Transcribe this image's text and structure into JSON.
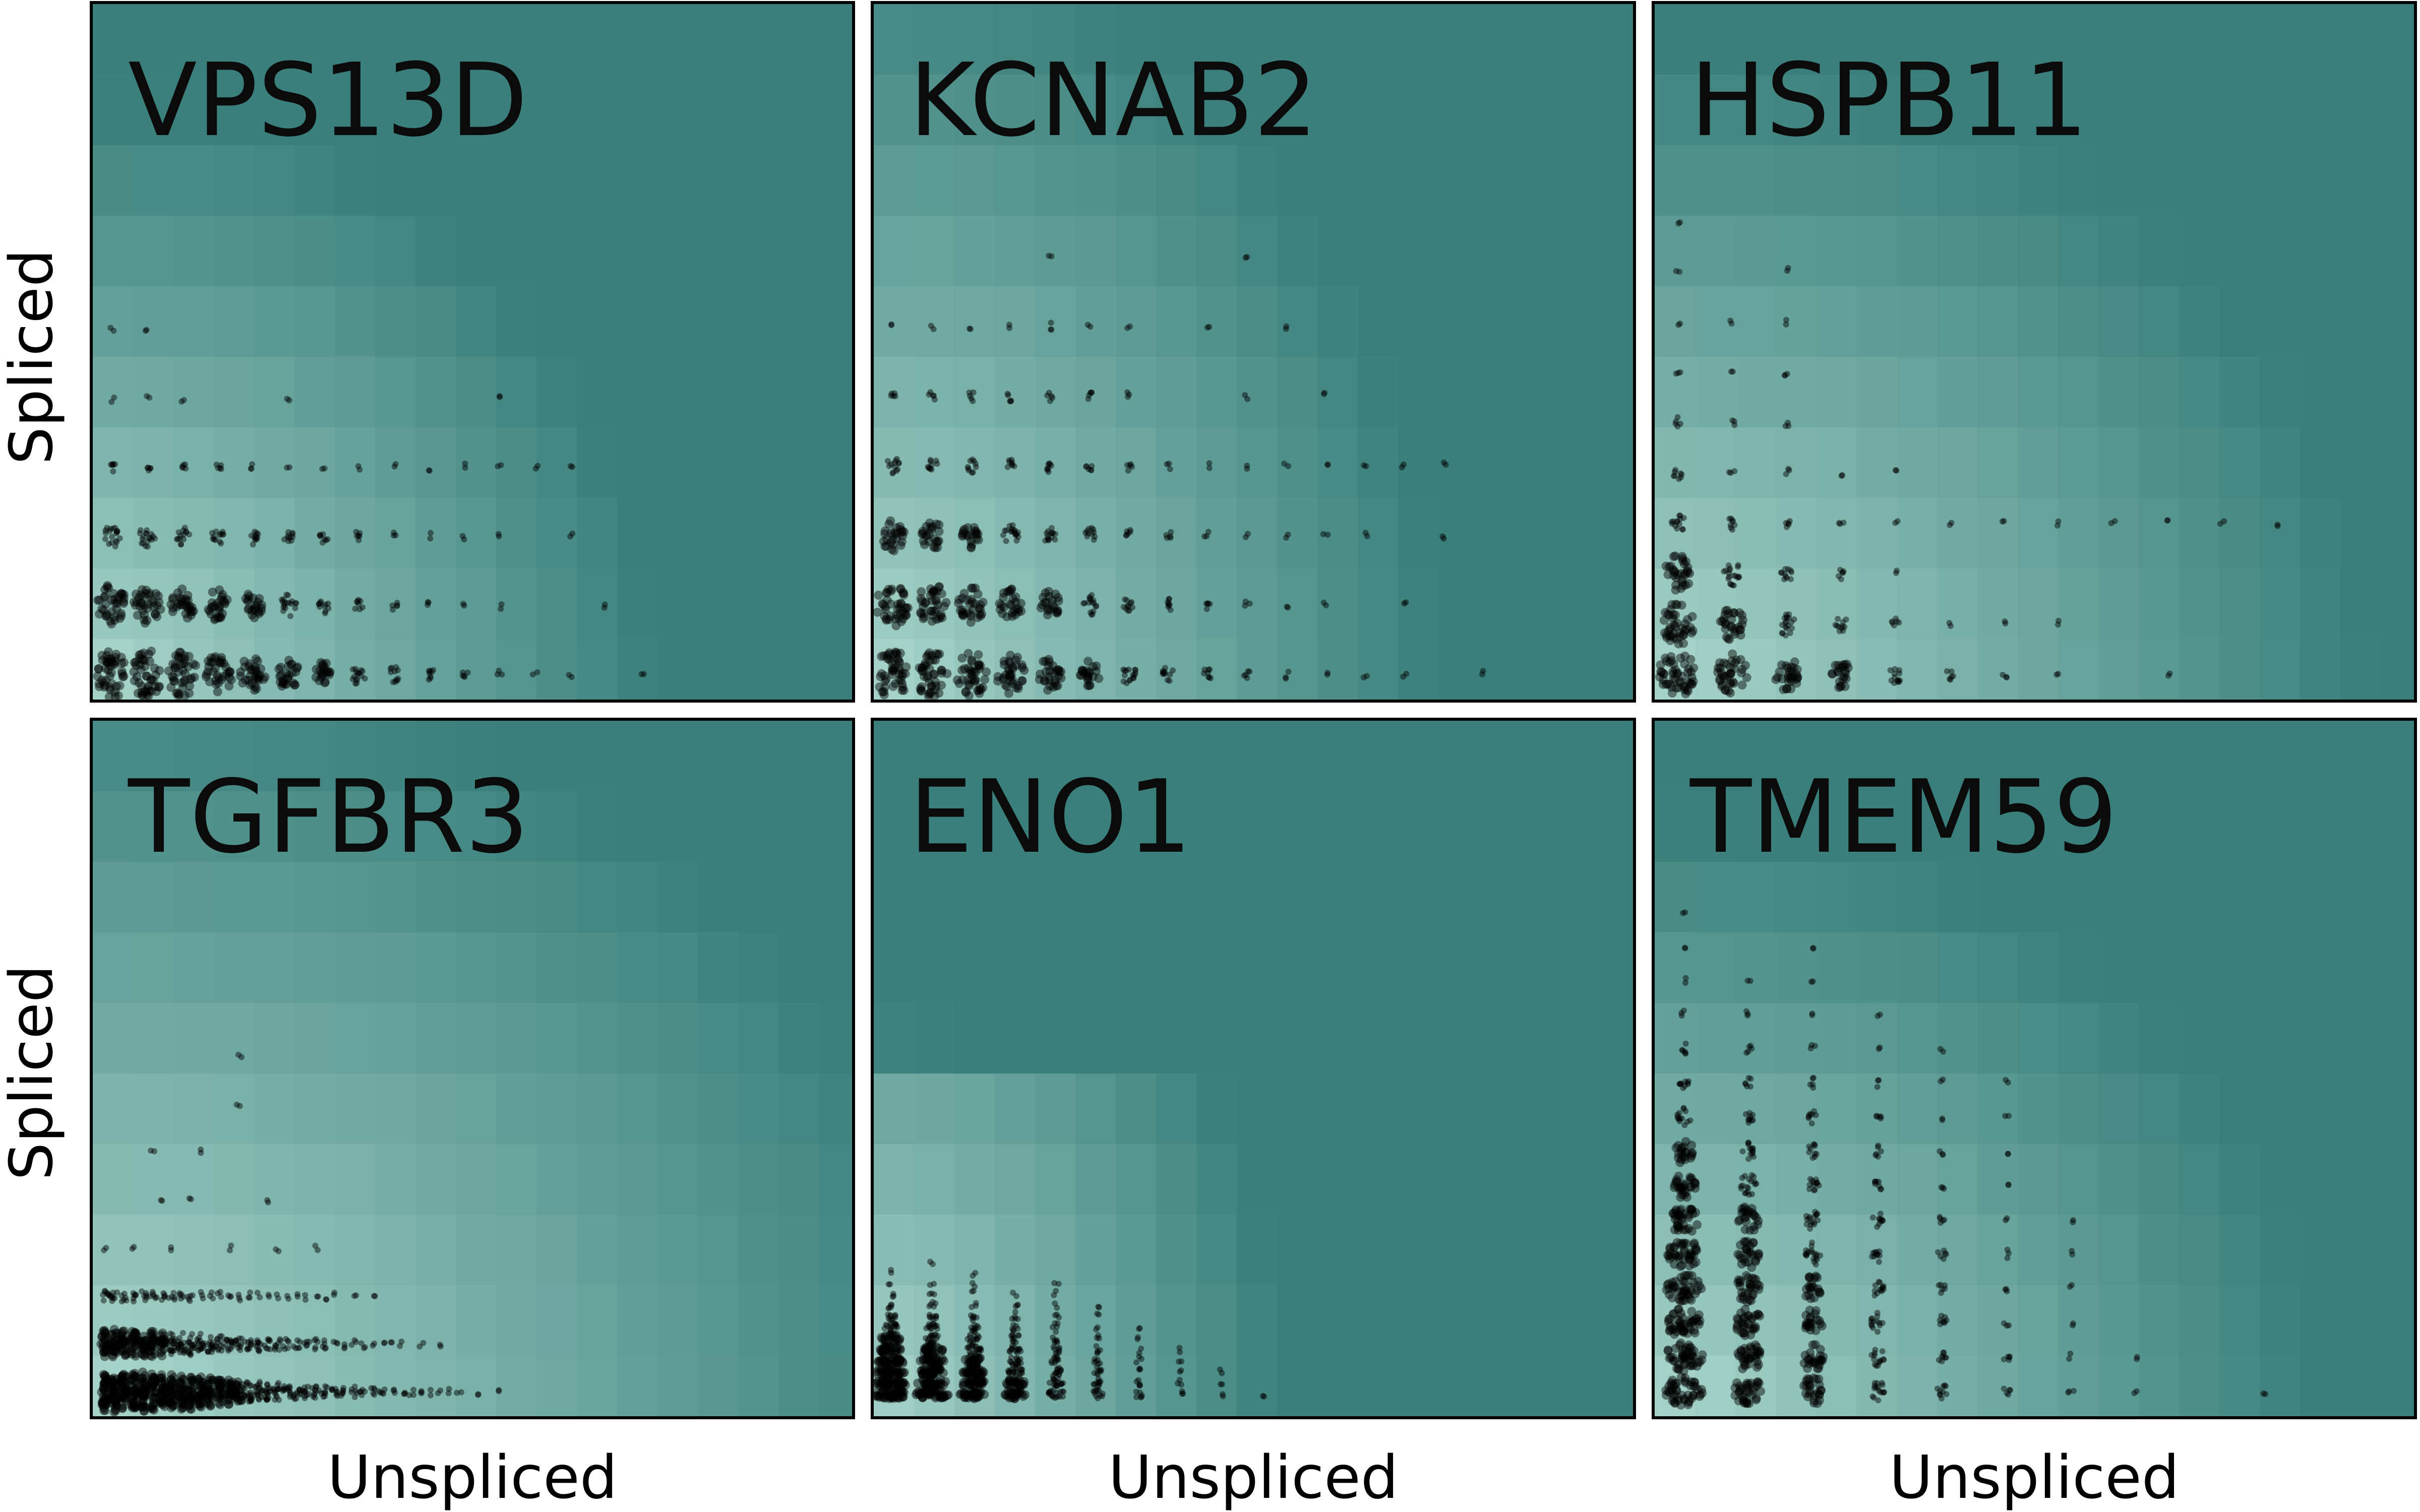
{
  "chart_data": [
    {
      "type": "scatter",
      "title": "VPS13D",
      "xlabel": "",
      "ylabel": "Spliced",
      "grid": false,
      "legend": "none",
      "background": "heatmap",
      "rows": [
        {
          "level": 0,
          "counts": [
            30,
            28,
            26,
            22,
            20,
            16,
            13,
            10,
            7,
            5,
            3,
            2,
            1,
            1,
            0,
            1
          ]
        },
        {
          "level": 1,
          "counts": [
            24,
            22,
            19,
            17,
            14,
            11,
            7,
            5,
            3,
            2,
            1,
            1,
            0,
            0,
            1
          ]
        },
        {
          "level": 2,
          "counts": [
            12,
            11,
            9,
            8,
            7,
            6,
            5,
            4,
            2,
            1,
            1,
            1,
            0,
            1
          ]
        },
        {
          "level": 3,
          "counts": [
            4,
            3,
            3,
            3,
            2,
            1,
            1,
            1,
            1,
            1,
            1,
            1,
            1,
            1
          ]
        },
        {
          "level": 4,
          "counts": [
            1,
            1,
            1,
            0,
            0,
            1,
            0,
            0,
            0,
            0,
            0,
            1
          ]
        },
        {
          "level": 5,
          "counts": [
            1,
            1
          ]
        }
      ]
    },
    {
      "type": "scatter",
      "title": "KCNAB2",
      "xlabel": "",
      "ylabel": "",
      "grid": false,
      "legend": "none",
      "background": "heatmap",
      "rows": [
        {
          "level": 0,
          "counts": [
            30,
            28,
            25,
            22,
            18,
            14,
            10,
            7,
            5,
            3,
            2,
            1,
            1,
            1,
            0,
            1
          ]
        },
        {
          "level": 1,
          "counts": [
            26,
            24,
            20,
            17,
            14,
            10,
            7,
            5,
            3,
            2,
            1,
            1,
            0,
            1
          ]
        },
        {
          "level": 2,
          "counts": [
            17,
            15,
            13,
            11,
            9,
            7,
            4,
            3,
            2,
            1,
            1,
            1,
            1,
            0,
            1
          ]
        },
        {
          "level": 3,
          "counts": [
            8,
            6,
            6,
            5,
            5,
            4,
            3,
            2,
            1,
            1,
            1,
            1,
            1,
            1,
            1
          ]
        },
        {
          "level": 4,
          "counts": [
            3,
            3,
            3,
            3,
            3,
            3,
            2,
            0,
            0,
            1,
            0,
            1
          ]
        },
        {
          "level": 5,
          "counts": [
            1,
            1,
            1,
            1,
            2,
            1,
            1,
            0,
            1,
            0,
            1
          ]
        },
        {
          "level": 6,
          "counts": [
            0,
            0,
            0,
            0,
            1,
            0,
            0,
            0,
            0,
            1
          ]
        }
      ]
    },
    {
      "type": "scatter",
      "title": "HSPB11",
      "xlabel": "",
      "ylabel": "",
      "grid": false,
      "legend": "none",
      "background": "heatmap",
      "rows": [
        {
          "level": 0,
          "counts": [
            32,
            24,
            18,
            14,
            8,
            4,
            2,
            1,
            0,
            1
          ]
        },
        {
          "level": 1,
          "counts": [
            26,
            18,
            12,
            7,
            4,
            1,
            1,
            1
          ]
        },
        {
          "level": 2,
          "counts": [
            20,
            12,
            7,
            4,
            1
          ]
        },
        {
          "level": 3,
          "counts": [
            9,
            5,
            3,
            2,
            1,
            1,
            1,
            1,
            1,
            1,
            1,
            1
          ]
        },
        {
          "level": 4,
          "counts": [
            5,
            2,
            2,
            1,
            1
          ]
        },
        {
          "level": 5,
          "counts": [
            3,
            2,
            2
          ]
        },
        {
          "level": 6,
          "counts": [
            2,
            1,
            2
          ]
        },
        {
          "level": 7,
          "counts": [
            1,
            1,
            1
          ]
        },
        {
          "level": 8,
          "counts": [
            1,
            0,
            1
          ]
        },
        {
          "level": 9,
          "counts": [
            1
          ]
        }
      ]
    },
    {
      "type": "scatter",
      "title": "TGFBR3",
      "xlabel": "Unspliced",
      "ylabel": "Spliced",
      "grid": false,
      "legend": "none",
      "background": "heatmap",
      "rows": [
        {
          "level": 0,
          "counts": [
            26,
            26,
            25,
            24,
            24,
            23,
            22,
            21,
            20,
            19,
            18,
            17,
            16,
            15,
            13,
            12,
            11,
            10,
            9,
            8,
            7,
            6,
            6,
            5,
            5,
            4,
            4,
            3,
            3,
            3,
            2,
            2,
            2,
            2,
            1,
            1,
            1,
            1,
            0,
            1,
            0,
            1
          ]
        },
        {
          "level": 1,
          "counts": [
            16,
            16,
            15,
            15,
            14,
            14,
            13,
            12,
            12,
            11,
            10,
            9,
            8,
            8,
            7,
            6,
            6,
            5,
            5,
            4,
            4,
            3,
            3,
            3,
            2,
            2,
            2,
            2,
            1,
            1,
            1,
            1,
            0,
            1,
            0,
            1
          ]
        },
        {
          "level": 2,
          "counts": [
            5,
            5,
            4,
            4,
            4,
            4,
            3,
            3,
            3,
            3,
            2,
            2,
            2,
            2,
            2,
            2,
            1,
            1,
            1,
            1,
            1,
            1,
            1,
            1,
            1,
            0,
            1,
            0,
            1
          ]
        },
        {
          "level": 3,
          "counts": [
            1,
            0,
            0,
            1,
            0,
            0,
            0,
            1,
            0,
            0,
            0,
            0,
            0,
            1,
            0,
            0,
            0,
            0,
            1,
            0,
            0,
            0,
            1
          ]
        },
        {
          "level": 4,
          "counts": [
            0,
            0,
            0,
            0,
            0,
            0,
            1,
            0,
            0,
            1,
            0,
            0,
            0,
            0,
            0,
            0,
            0,
            1
          ]
        },
        {
          "level": 5,
          "counts": [
            0,
            0,
            0,
            0,
            0,
            1,
            0,
            0,
            0,
            0,
            1
          ]
        },
        {
          "level": 6,
          "counts": [
            0,
            0,
            0,
            0,
            0,
            0,
            0,
            0,
            0,
            0,
            0,
            0,
            0,
            0,
            1
          ]
        },
        {
          "level": 7,
          "counts": [
            0,
            0,
            0,
            0,
            0,
            0,
            0,
            0,
            0,
            0,
            0,
            0,
            0,
            0,
            1
          ]
        }
      ]
    },
    {
      "type": "scatter",
      "title": "ENO1",
      "xlabel": "Unspliced",
      "ylabel": "",
      "grid": false,
      "legend": "none",
      "background": "heatmap",
      "rows": [
        {
          "level": 0,
          "counts": [
            28,
            26,
            22,
            16,
            12,
            7,
            4,
            2,
            1,
            1
          ]
        },
        {
          "level": 1,
          "counts": [
            26,
            24,
            20,
            14,
            10,
            6,
            3,
            2,
            1
          ]
        },
        {
          "level": 2,
          "counts": [
            24,
            22,
            17,
            12,
            8,
            5,
            2,
            1,
            1
          ]
        },
        {
          "level": 3,
          "counts": [
            22,
            19,
            14,
            10,
            6,
            4,
            2,
            1
          ]
        },
        {
          "level": 4,
          "counts": [
            18,
            15,
            11,
            8,
            5,
            3,
            1,
            1
          ]
        },
        {
          "level": 5,
          "counts": [
            14,
            11,
            8,
            6,
            4,
            2,
            1
          ]
        },
        {
          "level": 6,
          "counts": [
            10,
            8,
            6,
            4,
            3,
            1,
            1
          ]
        },
        {
          "level": 7,
          "counts": [
            6,
            5,
            4,
            3,
            2,
            1
          ]
        },
        {
          "level": 8,
          "counts": [
            3,
            3,
            2,
            2,
            1,
            1
          ]
        },
        {
          "level": 9,
          "counts": [
            2,
            2,
            1,
            1,
            1
          ]
        },
        {
          "level": 10,
          "counts": [
            1,
            1,
            1,
            0,
            1
          ]
        },
        {
          "level": 11,
          "counts": [
            1,
            0,
            1
          ]
        },
        {
          "level": 12,
          "counts": [
            0,
            1
          ]
        }
      ]
    },
    {
      "type": "scatter",
      "title": "TMEM59",
      "xlabel": "Unspliced",
      "ylabel": "",
      "grid": false,
      "legend": "none",
      "background": "heatmap",
      "rows": [
        {
          "level": 0,
          "counts": [
            30,
            22,
            16,
            10,
            6,
            3,
            2,
            1,
            0,
            1
          ]
        },
        {
          "level": 1,
          "counts": [
            30,
            21,
            15,
            9,
            5,
            3,
            1,
            1
          ]
        },
        {
          "level": 2,
          "counts": [
            29,
            20,
            14,
            9,
            5,
            2,
            1
          ]
        },
        {
          "level": 3,
          "counts": [
            28,
            19,
            13,
            8,
            4,
            2,
            1
          ]
        },
        {
          "level": 4,
          "counts": [
            26,
            17,
            12,
            7,
            4,
            2,
            1
          ]
        },
        {
          "level": 5,
          "counts": [
            22,
            15,
            10,
            6,
            3,
            1,
            1
          ]
        },
        {
          "level": 6,
          "counts": [
            18,
            12,
            8,
            5,
            2,
            1
          ]
        },
        {
          "level": 7,
          "counts": [
            13,
            9,
            6,
            4,
            2,
            1
          ]
        },
        {
          "level": 8,
          "counts": [
            9,
            6,
            5,
            3,
            1,
            1
          ]
        },
        {
          "level": 9,
          "counts": [
            6,
            4,
            3,
            2,
            1,
            1
          ]
        },
        {
          "level": 10,
          "counts": [
            4,
            3,
            2,
            1,
            1
          ]
        },
        {
          "level": 11,
          "counts": [
            2,
            2,
            1,
            1
          ]
        },
        {
          "level": 12,
          "counts": [
            1,
            1,
            1
          ]
        },
        {
          "level": 13,
          "counts": [
            1,
            0,
            1
          ]
        },
        {
          "level": 14,
          "counts": [
            1
          ]
        }
      ]
    }
  ],
  "colors": {
    "light": "#b2dcd1",
    "dark": "#3a7f7b",
    "dot": "#000000"
  }
}
